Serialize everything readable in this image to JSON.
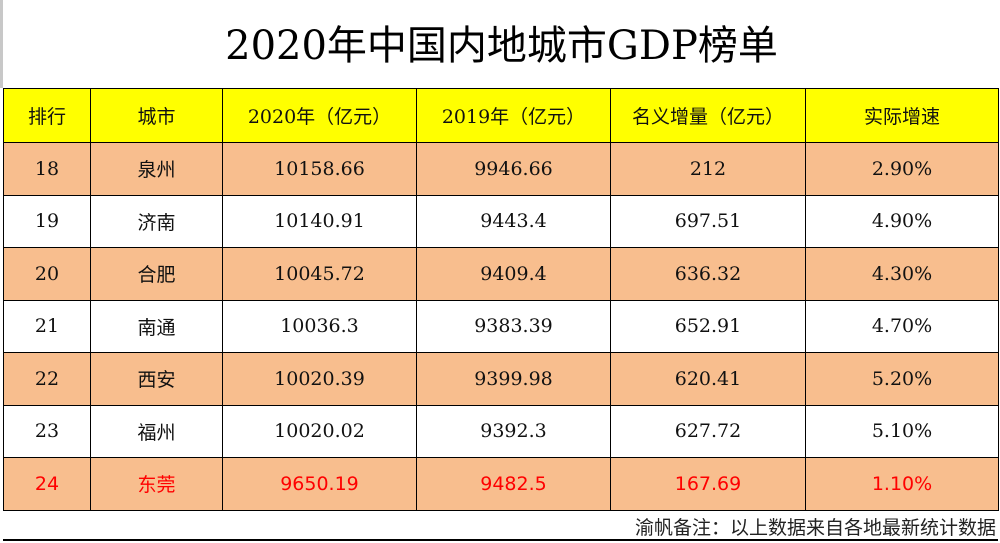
{
  "title": "2020年中国内地城市GDP榜单",
  "headers": [
    "排行",
    "城市",
    "2020年（亿元）",
    "2019年（亿元）",
    "名义增量（亿元）",
    "实际增速"
  ],
  "rows": [
    [
      "18",
      "泉州",
      "10158.66",
      "9946.66",
      "212",
      "2.90%"
    ],
    [
      "19",
      "济南",
      "10140.91",
      "9443.4",
      "697.51",
      "4.90%"
    ],
    [
      "20",
      "合肥",
      "10045.72",
      "9409.4",
      "636.32",
      "4.30%"
    ],
    [
      "21",
      "南通",
      "10036.3",
      "9383.39",
      "652.91",
      "4.70%"
    ],
    [
      "22",
      "西安",
      "10020.39",
      "9399.98",
      "620.41",
      "5.20%"
    ],
    [
      "23",
      "福州",
      "10020.02",
      "9392.3",
      "627.72",
      "5.10%"
    ],
    [
      "24",
      "东莞",
      "9650.19",
      "9482.5",
      "167.69",
      "1.10%"
    ]
  ],
  "highlight_color": "#ff0000",
  "header_color": "#ffff00",
  "stripe_color": "#f8be8e",
  "footer": "渝帆备注：以上数据来自各地最新统计数据"
}
